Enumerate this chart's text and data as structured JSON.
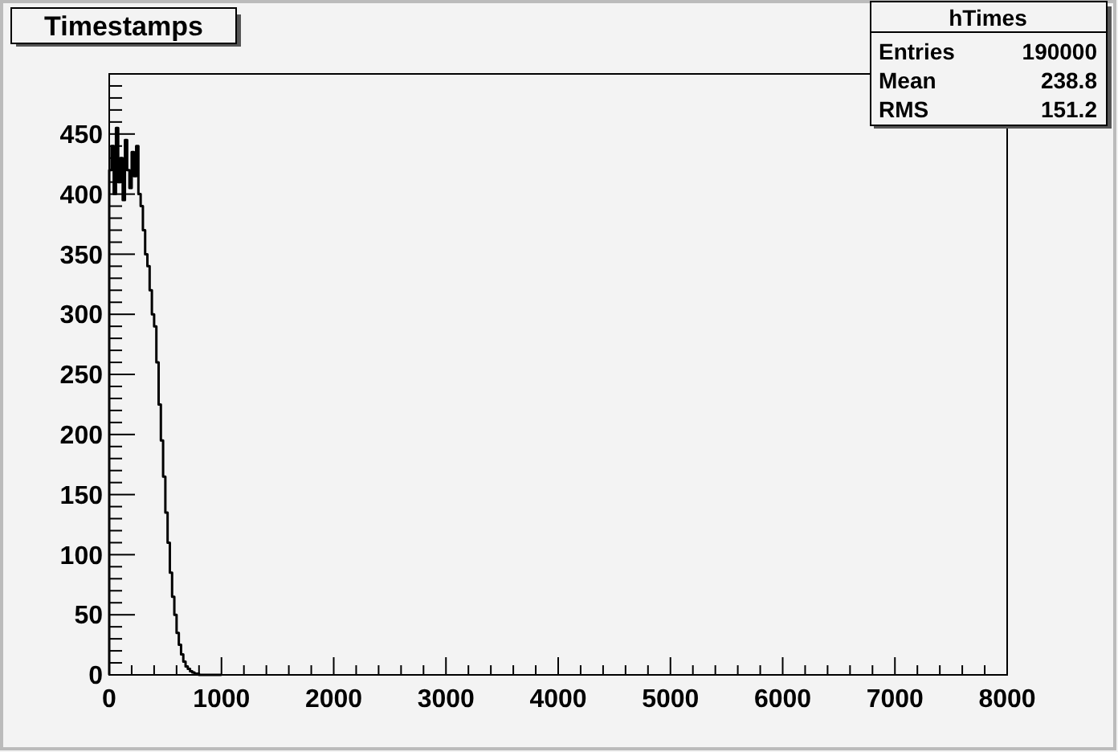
{
  "chart_data": {
    "type": "histogram",
    "title": "Timestamps",
    "bins": [
      0,
      20,
      40,
      60,
      80,
      100,
      120,
      140,
      160,
      180,
      200,
      220,
      240,
      260,
      280,
      300,
      320,
      340,
      360,
      380,
      400,
      420,
      440,
      460,
      480,
      500,
      520,
      540,
      560,
      580,
      600,
      620,
      640,
      660,
      680,
      700,
      720,
      740,
      760,
      780,
      800,
      820,
      840,
      860,
      880,
      900,
      920,
      940,
      960,
      980,
      1000
    ],
    "values": [
      420,
      440,
      400,
      455,
      410,
      430,
      395,
      445,
      420,
      405,
      435,
      415,
      440,
      400,
      390,
      370,
      350,
      340,
      320,
      300,
      290,
      260,
      225,
      195,
      165,
      135,
      110,
      85,
      65,
      50,
      35,
      25,
      17,
      11,
      7,
      5,
      3,
      2,
      1,
      1,
      0,
      0,
      0,
      0,
      0,
      0,
      0,
      0,
      0,
      0
    ],
    "color": "#000000",
    "xlim": [
      0,
      8000
    ],
    "ylim": [
      0,
      500
    ],
    "xticks": [
      0,
      {
        "value": 200,
        "label": null
      },
      {
        "value": 400,
        "label": null
      },
      {
        "value": 600,
        "label": null
      },
      {
        "value": 800,
        "label": null
      },
      1000,
      {
        "value": 1200,
        "label": null
      },
      {
        "value": 1400,
        "label": null
      },
      {
        "value": 1600,
        "label": null
      },
      {
        "value": 1800,
        "label": null
      },
      2000,
      {
        "value": 2200,
        "label": null
      },
      {
        "value": 2400,
        "label": null
      },
      {
        "value": 2600,
        "label": null
      },
      {
        "value": 2800,
        "label": null
      },
      3000,
      {
        "value": 3200,
        "label": null
      },
      {
        "value": 3400,
        "label": null
      },
      {
        "value": 3600,
        "label": null
      },
      {
        "value": 3800,
        "label": null
      },
      4000,
      {
        "value": 4200,
        "label": null
      },
      {
        "value": 4400,
        "label": null
      },
      {
        "value": 4600,
        "label": null
      },
      {
        "value": 4800,
        "label": null
      },
      5000,
      {
        "value": 5200,
        "label": null
      },
      {
        "value": 5400,
        "label": null
      },
      {
        "value": 5600,
        "label": null
      },
      {
        "value": 5800,
        "label": null
      },
      6000,
      {
        "value": 6200,
        "label": null
      },
      {
        "value": 6400,
        "label": null
      },
      {
        "value": 6600,
        "label": null
      },
      {
        "value": 6800,
        "label": null
      },
      7000,
      {
        "value": 7200,
        "label": null
      },
      {
        "value": 7400,
        "label": null
      },
      {
        "value": 7600,
        "label": null
      },
      {
        "value": 7800,
        "label": null
      },
      8000
    ],
    "yticks": [
      0,
      {
        "value": 10,
        "label": null
      },
      {
        "value": 20,
        "label": null
      },
      {
        "value": 30,
        "label": null
      },
      {
        "value": 40,
        "label": null
      },
      50,
      {
        "value": 60,
        "label": null
      },
      {
        "value": 70,
        "label": null
      },
      {
        "value": 80,
        "label": null
      },
      {
        "value": 90,
        "label": null
      },
      100,
      {
        "value": 110,
        "label": null
      },
      {
        "value": 120,
        "label": null
      },
      {
        "value": 130,
        "label": null
      },
      {
        "value": 140,
        "label": null
      },
      150,
      {
        "value": 160,
        "label": null
      },
      {
        "value": 170,
        "label": null
      },
      {
        "value": 180,
        "label": null
      },
      {
        "value": 190,
        "label": null
      },
      200,
      {
        "value": 210,
        "label": null
      },
      {
        "value": 220,
        "label": null
      },
      {
        "value": 230,
        "label": null
      },
      {
        "value": 240,
        "label": null
      },
      250,
      {
        "value": 260,
        "label": null
      },
      {
        "value": 270,
        "label": null
      },
      {
        "value": 280,
        "label": null
      },
      {
        "value": 290,
        "label": null
      },
      300,
      {
        "value": 310,
        "label": null
      },
      {
        "value": 320,
        "label": null
      },
      {
        "value": 330,
        "label": null
      },
      {
        "value": 340,
        "label": null
      },
      350,
      {
        "value": 360,
        "label": null
      },
      {
        "value": 370,
        "label": null
      },
      {
        "value": 380,
        "label": null
      },
      {
        "value": 390,
        "label": null
      },
      400,
      {
        "value": 410,
        "label": null
      },
      {
        "value": 420,
        "label": null
      },
      {
        "value": 430,
        "label": null
      },
      {
        "value": 440,
        "label": null
      },
      450,
      {
        "value": 460,
        "label": null
      },
      {
        "value": 470,
        "label": null
      },
      {
        "value": 480,
        "label": null
      },
      {
        "value": 490,
        "label": null
      }
    ],
    "grid": false,
    "annotations": [
      "hTimes",
      "Entries",
      "190000",
      "Mean",
      "238.8",
      "RMS",
      "151.2"
    ]
  }
}
